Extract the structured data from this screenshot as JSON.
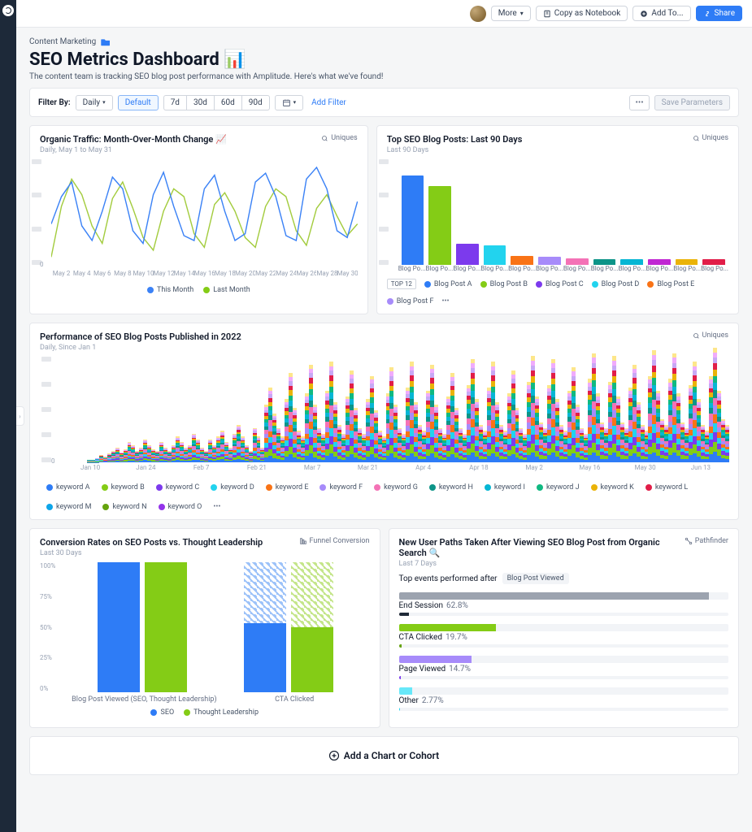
{
  "topbar": {
    "more": "More",
    "copy": "Copy as Notebook",
    "addto": "Add To...",
    "share": "Share"
  },
  "header": {
    "breadcrumb": "Content Marketing",
    "title": "SEO Metrics Dashboard 📊",
    "subtitle": "The content team is tracking SEO blog post performance with Amplitude. Here's what we've found!"
  },
  "filters": {
    "label": "Filter By:",
    "interval": "Daily",
    "default_btn": "Default",
    "ranges": [
      "7d",
      "30d",
      "60d",
      "90d"
    ],
    "add_filter": "Add Filter",
    "save": "Save Parameters"
  },
  "card1": {
    "title": "Organic Traffic: Month-Over-Month Change 📈",
    "sub": "Daily, May 1 to May 31",
    "metric": "Uniques",
    "x_labels": [
      "May 2",
      "May 4",
      "May 6",
      "May 8",
      "May 10",
      "May 12",
      "May 14",
      "May 16",
      "May 18",
      "May 20",
      "May 22",
      "May 24",
      "May 26",
      "May 28",
      "May 30"
    ],
    "legend": [
      {
        "label": "This Month",
        "color": "#3b82f6"
      },
      {
        "label": "Last Month",
        "color": "#84cc16"
      }
    ],
    "series": {
      "this_month": [
        42,
        70,
        85,
        40,
        25,
        55,
        90,
        78,
        35,
        22,
        72,
        95,
        60,
        30,
        25,
        78,
        92,
        55,
        25,
        32,
        85,
        94,
        70,
        30,
        25,
        88,
        100,
        78,
        35,
        28,
        65
      ],
      "last_month": [
        8,
        60,
        88,
        72,
        40,
        22,
        68,
        85,
        58,
        28,
        15,
        55,
        78,
        70,
        32,
        18,
        62,
        74,
        55,
        28,
        18,
        60,
        78,
        70,
        35,
        20,
        58,
        72,
        50,
        30,
        42
      ]
    },
    "colors": {
      "this": "#3b82f6",
      "last": "#a3cc3e"
    }
  },
  "card2": {
    "title": "Top SEO Blog Posts: Last 90 Days",
    "sub": "Last 90 Days",
    "metric": "Uniques",
    "bars": [
      {
        "label": "Blog Po...",
        "v": 100,
        "c": "#2e7cf6"
      },
      {
        "label": "Blog Po...",
        "v": 88,
        "c": "#84cc16"
      },
      {
        "label": "Blog Po...",
        "v": 24,
        "c": "#7c3aed"
      },
      {
        "label": "Blog Po...",
        "v": 22,
        "c": "#22d3ee"
      },
      {
        "label": "Blog Po...",
        "v": 10,
        "c": "#f97316"
      },
      {
        "label": "Blog Po...",
        "v": 9,
        "c": "#a78bfa"
      },
      {
        "label": "Blog Po...",
        "v": 7,
        "c": "#f472b6"
      },
      {
        "label": "Blog Po...",
        "v": 6,
        "c": "#0d9488"
      },
      {
        "label": "Blog Po...",
        "v": 6,
        "c": "#06b6d4"
      },
      {
        "label": "Blog Po...",
        "v": 6,
        "c": "#c026d3"
      },
      {
        "label": "Blog Po...",
        "v": 6,
        "c": "#eab308"
      },
      {
        "label": "Blog Po...",
        "v": 6,
        "c": "#e11d48"
      }
    ],
    "badge": "TOP 12",
    "legend": [
      {
        "label": "Blog Post A",
        "c": "#2e7cf6"
      },
      {
        "label": "Blog Post B",
        "c": "#84cc16"
      },
      {
        "label": "Blog Post C",
        "c": "#7c3aed"
      },
      {
        "label": "Blog Post D",
        "c": "#22d3ee"
      },
      {
        "label": "Blog Post E",
        "c": "#f97316"
      },
      {
        "label": "Blog Post F",
        "c": "#a78bfa"
      }
    ]
  },
  "card3": {
    "title": "Performance of SEO Blog Posts Published in 2022",
    "sub": "Daily, Since Jan 1",
    "metric": "Uniques",
    "x_labels": [
      "Jan 10",
      "Jan 24",
      "Feb 7",
      "Feb 21",
      "Mar 7",
      "Mar 21",
      "Apr 4",
      "Apr 18",
      "May 2",
      "May 16",
      "May 30",
      "Jun 13"
    ],
    "legend": [
      {
        "label": "keyword A",
        "c": "#2e7cf6"
      },
      {
        "label": "keyword B",
        "c": "#84cc16"
      },
      {
        "label": "keyword C",
        "c": "#7c3aed"
      },
      {
        "label": "keyword D",
        "c": "#22d3ee"
      },
      {
        "label": "keyword E",
        "c": "#f97316"
      },
      {
        "label": "keyword F",
        "c": "#a78bfa"
      },
      {
        "label": "keyword G",
        "c": "#f472b6"
      },
      {
        "label": "keyword H",
        "c": "#0d9488"
      },
      {
        "label": "keyword I",
        "c": "#06b6d4"
      },
      {
        "label": "keyword J",
        "c": "#10b981"
      },
      {
        "label": "keyword K",
        "c": "#eab308"
      },
      {
        "label": "keyword L",
        "c": "#e11d48"
      },
      {
        "label": "keyword M",
        "c": "#0ea5e9"
      },
      {
        "label": "keyword N",
        "c": "#65a30d"
      },
      {
        "label": "keyword O",
        "c": "#9333ea"
      }
    ],
    "layers": [
      "#2e7cf6",
      "#84cc16",
      "#7c3aed",
      "#22d3ee",
      "#f97316",
      "#a78bfa",
      "#f472b6",
      "#0d9488",
      "#06b6d4",
      "#10b981",
      "#eab308",
      "#e11d48",
      "#c7a8f5",
      "#f0abfc",
      "#fde68a"
    ],
    "shape": [
      0,
      0,
      0,
      0,
      0,
      0,
      2,
      2,
      3,
      5,
      4,
      6,
      8,
      10,
      7,
      9,
      14,
      12,
      8,
      10,
      16,
      12,
      9,
      8,
      14,
      10,
      8,
      12,
      18,
      14,
      10,
      12,
      20,
      16,
      10,
      8,
      16,
      12,
      18,
      22,
      14,
      10,
      20,
      26,
      18,
      12,
      8,
      24,
      18,
      10,
      40,
      52,
      34,
      24,
      18,
      44,
      62,
      38,
      22,
      18,
      48,
      68,
      40,
      24,
      20,
      50,
      70,
      42,
      26,
      20,
      46,
      64,
      38,
      24,
      20,
      44,
      60,
      36,
      22,
      18,
      48,
      66,
      40,
      24,
      20,
      52,
      70,
      42,
      26,
      22,
      50,
      68,
      40,
      24,
      20,
      46,
      62,
      38,
      24,
      20,
      54,
      72,
      44,
      26,
      22,
      52,
      70,
      42,
      26,
      22,
      48,
      64,
      38,
      24,
      20,
      56,
      74,
      46,
      28,
      24,
      54,
      72,
      44,
      26,
      22,
      50,
      66,
      40,
      24,
      20,
      58,
      76,
      48,
      28,
      24,
      56,
      74,
      46,
      28,
      24,
      52,
      68,
      42,
      26,
      22,
      60,
      78,
      50,
      30,
      26,
      58,
      76,
      48,
      28,
      24,
      54,
      70,
      44,
      26,
      22,
      60,
      80,
      50,
      30,
      26
    ]
  },
  "card4": {
    "title": "Conversion Rates on SEO Posts vs. Thought Leadership",
    "sub": "Last 30 Days",
    "metric": "Funnel Conversion",
    "y_labels": [
      "100%",
      "75%",
      "50%",
      "25%",
      "0%"
    ],
    "groups": [
      {
        "label": "Blog Post Viewed (SEO, Thought Leadership)",
        "seo": 100,
        "tl": 100
      },
      {
        "label": "CTA Clicked",
        "seo": 53,
        "tl": 50
      }
    ],
    "legend": [
      {
        "label": "SEO",
        "c": "#2e7cf6"
      },
      {
        "label": "Thought Leadership",
        "c": "#84cc16"
      }
    ]
  },
  "card5": {
    "title": "New User Paths Taken After Viewing SEO Blog Post from Organic Search 🔍",
    "sub": "Last 7 Days",
    "metric": "Pathfinder",
    "top_events": "Top events performed after",
    "chip": "Blog Post Viewed",
    "paths": [
      {
        "label": "End Session",
        "pct": "62.8%",
        "w": 62.8,
        "c": "#9ca3af",
        "c2": "#1f2937"
      },
      {
        "label": "CTA Clicked",
        "pct": "19.7%",
        "w": 19.7,
        "c": "#84cc16",
        "c2": "#65a30d"
      },
      {
        "label": "Page Viewed",
        "pct": "14.7%",
        "w": 14.7,
        "c": "#a78bfa",
        "c2": "#7c3aed"
      },
      {
        "label": "Other",
        "pct": "2.77%",
        "w": 2.77,
        "c": "#67e8f9",
        "c2": "#22d3ee"
      }
    ]
  },
  "footer": {
    "add": "Add a Chart or Cohort"
  }
}
